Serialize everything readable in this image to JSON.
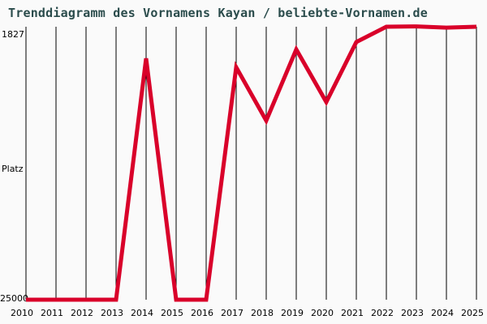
{
  "chart_data": {
    "type": "line",
    "title": "Trenddiagramm des Vornamens Kayan / beliebte-Vornamen.de",
    "xlabel": "",
    "ylabel": "Platz",
    "y_inverted": true,
    "ylim": [
      25000,
      1827
    ],
    "y_tick_labels": [
      "1827",
      "Platz",
      "25000"
    ],
    "categories": [
      "2010",
      "2011",
      "2012",
      "2013",
      "2014",
      "2015",
      "2016",
      "2017",
      "2018",
      "2019",
      "2020",
      "2021",
      "2022",
      "2023",
      "2024",
      "2025"
    ],
    "series": [
      {
        "name": "Kayan",
        "color": "#d9002a",
        "values": [
          25000,
          25000,
          25000,
          25000,
          4510,
          25000,
          25000,
          5265,
          9800,
          3750,
          8220,
          3130,
          1827,
          1800,
          1900,
          1827
        ]
      }
    ],
    "grid": {
      "vertical": true,
      "horizontal": false
    },
    "legend": null
  }
}
